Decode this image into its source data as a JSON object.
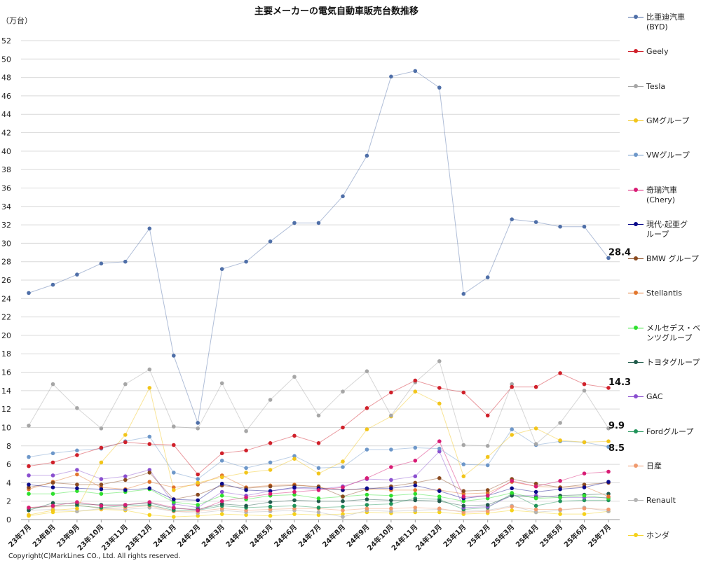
{
  "copyright": "Copyright(C)MarkLines CO., Ltd. All rights reserved.",
  "chart_data": {
    "type": "line",
    "title": "主要メーカーの電気自動車販売台数推移",
    "ylabel": "（万台）",
    "xlabel": "",
    "ylim": [
      0,
      52
    ],
    "yticks": [
      0,
      2,
      4,
      6,
      8,
      10,
      12,
      14,
      16,
      18,
      20,
      22,
      24,
      26,
      28,
      30,
      32,
      34,
      36,
      38,
      40,
      42,
      44,
      46,
      48,
      50,
      52
    ],
    "grid": true,
    "legend_position": "right",
    "categories": [
      "23年7月",
      "23年8月",
      "23年9月",
      "23年10月",
      "23年11月",
      "23年12月",
      "24年1月",
      "24年2月",
      "24年3月",
      "24年4月",
      "24年5月",
      "24年6月",
      "24年7月",
      "24年8月",
      "24年9月",
      "24年10月",
      "24年11月",
      "24年12月",
      "25年1月",
      "25年2月",
      "25年3月",
      "25年4月",
      "25年5月",
      "25年6月",
      "25年7月"
    ],
    "annotations": [
      {
        "series": "比亜迪汽車\n(BYD)",
        "text": "28.4"
      },
      {
        "series": "Geely",
        "text": "14.3"
      },
      {
        "series": "Tesla",
        "text": "9.9"
      },
      {
        "series": "GMグループ",
        "text": "8.5"
      }
    ],
    "series": [
      {
        "name": "比亜迪汽車\n(BYD)",
        "color": "#4f6fa8",
        "values": [
          24.6,
          25.5,
          26.6,
          27.8,
          28.0,
          31.6,
          17.8,
          10.5,
          27.2,
          28.0,
          30.2,
          32.2,
          32.2,
          35.1,
          39.5,
          48.1,
          48.7,
          46.9,
          24.5,
          26.3,
          32.6,
          32.3,
          31.8,
          31.8,
          28.4
        ]
      },
      {
        "name": "Geely",
        "color": "#d0202a",
        "values": [
          5.8,
          6.2,
          7.0,
          7.8,
          8.4,
          8.2,
          8.1,
          4.9,
          7.2,
          7.5,
          8.3,
          9.1,
          8.3,
          10.0,
          12.1,
          13.8,
          15.1,
          14.3,
          13.8,
          11.3,
          14.4,
          14.4,
          15.9,
          14.7,
          14.3
        ]
      },
      {
        "name": "Tesla",
        "color": "#a6a6a6",
        "values": [
          10.2,
          14.7,
          12.1,
          9.9,
          14.7,
          16.3,
          10.1,
          9.9,
          14.8,
          9.6,
          13.0,
          15.5,
          11.3,
          13.9,
          16.1,
          11.3,
          14.9,
          17.2,
          8.1,
          8.0,
          14.7,
          8.2,
          10.5,
          14.0,
          9.9
        ]
      },
      {
        "name": "GMグループ",
        "color": "#f2c51a",
        "values": [
          0.5,
          1.0,
          1.2,
          6.2,
          9.2,
          14.3,
          3.2,
          4.0,
          4.6,
          5.1,
          5.4,
          6.6,
          5.0,
          6.3,
          9.8,
          11.2,
          13.9,
          12.6,
          4.7,
          6.8,
          9.2,
          9.9,
          8.6,
          8.4,
          8.5
        ]
      },
      {
        "name": "VWグループ",
        "color": "#6d97c9",
        "values": [
          6.8,
          7.2,
          7.5,
          7.7,
          8.5,
          9.0,
          5.1,
          4.4,
          6.4,
          5.6,
          6.2,
          6.9,
          5.6,
          5.7,
          7.6,
          7.6,
          7.8,
          7.7,
          6.0,
          5.9,
          9.8,
          8.1,
          8.5,
          8.4,
          7.9
        ]
      },
      {
        "name": "奇瑞汽車\n(Chery)",
        "color": "#d81b74",
        "values": [
          1.3,
          1.5,
          1.9,
          1.5,
          1.6,
          1.9,
          1.3,
          1.0,
          2.0,
          2.4,
          2.8,
          3.0,
          3.2,
          3.5,
          4.5,
          5.7,
          6.4,
          8.5,
          2.5,
          2.6,
          4.2,
          3.6,
          4.2,
          5.0,
          5.2
        ]
      },
      {
        "name": "現代-起亜グ\nループ",
        "color": "#0a0a8a",
        "values": [
          3.8,
          3.5,
          3.4,
          3.3,
          3.2,
          3.4,
          2.2,
          2.1,
          3.9,
          3.2,
          3.1,
          3.5,
          3.4,
          3.2,
          3.4,
          3.4,
          3.7,
          3.1,
          2.3,
          2.6,
          3.4,
          3.0,
          3.3,
          3.5,
          4.1
        ]
      },
      {
        "name": "BMW グループ",
        "color": "#8a4a1f",
        "values": [
          3.5,
          4.0,
          3.8,
          3.8,
          4.3,
          5.1,
          2.2,
          2.7,
          3.7,
          3.4,
          3.6,
          3.7,
          3.6,
          2.5,
          3.3,
          3.6,
          4.0,
          4.5,
          3.1,
          3.2,
          4.4,
          3.9,
          3.5,
          3.8,
          4.0
        ]
      },
      {
        "name": "Stellantis",
        "color": "#e2772e",
        "values": [
          3.3,
          4.1,
          4.9,
          3.5,
          3.3,
          4.1,
          3.5,
          3.8,
          4.8,
          3.5,
          3.7,
          3.8,
          3.5,
          3.2,
          3.3,
          3.2,
          3.2,
          3.2,
          2.8,
          2.9,
          4.1,
          3.6,
          3.5,
          3.6,
          2.5
        ]
      },
      {
        "name": "メルセデス・ベ\nンツグループ",
        "color": "#2ee02e",
        "values": [
          2.8,
          2.8,
          3.1,
          2.8,
          3.0,
          3.3,
          1.9,
          1.6,
          2.6,
          2.2,
          2.6,
          2.7,
          2.3,
          2.5,
          2.7,
          2.6,
          2.8,
          2.5,
          2.0,
          2.3,
          2.9,
          2.3,
          2.4,
          2.6,
          2.3
        ]
      },
      {
        "name": "トヨタグループ",
        "color": "#1f5a4a",
        "values": [
          1.0,
          1.8,
          1.7,
          1.6,
          1.6,
          1.8,
          1.2,
          1.1,
          1.7,
          1.5,
          1.9,
          2.1,
          2.0,
          2.0,
          2.2,
          2.1,
          2.1,
          2.0,
          1.5,
          1.6,
          2.6,
          2.4,
          2.6,
          2.7,
          2.8
        ]
      },
      {
        "name": "GAC",
        "color": "#8a4fcf",
        "values": [
          4.8,
          4.8,
          5.4,
          4.4,
          4.7,
          5.4,
          1.7,
          1.3,
          3.0,
          2.6,
          3.1,
          3.4,
          3.3,
          3.6,
          4.4,
          4.3,
          4.7,
          7.4,
          1.3,
          1.4,
          2.6,
          2.6,
          2.4,
          2.4,
          2.4
        ]
      },
      {
        "name": "Fordグループ",
        "color": "#21945a",
        "values": [
          1.2,
          1.5,
          1.5,
          1.3,
          1.5,
          1.6,
          1.0,
          1.0,
          1.5,
          1.3,
          1.4,
          1.5,
          1.3,
          1.4,
          1.6,
          1.7,
          2.3,
          2.2,
          1.1,
          1.3,
          2.8,
          1.5,
          2.0,
          2.1,
          2.1
        ]
      },
      {
        "name": "日産",
        "color": "#f09a6e",
        "values": [
          1.3,
          1.4,
          1.6,
          1.2,
          1.3,
          1.5,
          0.9,
          0.9,
          1.2,
          1.0,
          1.1,
          1.2,
          1.2,
          1.0,
          1.2,
          1.2,
          1.3,
          1.2,
          0.8,
          0.9,
          1.4,
          1.1,
          1.1,
          1.2,
          1.1
        ]
      },
      {
        "name": "Renault",
        "color": "#b4b4b4",
        "values": [
          1.0,
          1.1,
          0.9,
          1.2,
          1.1,
          1.3,
          0.9,
          0.7,
          1.0,
          0.8,
          0.9,
          1.0,
          0.8,
          0.3,
          1.0,
          0.9,
          1.0,
          1.1,
          0.9,
          1.0,
          1.5,
          0.8,
          1.0,
          1.3,
          0.9
        ]
      },
      {
        "name": "ホンダ",
        "color": "#f5d11a",
        "values": [
          0.4,
          0.8,
          0.9,
          1.1,
          1.0,
          0.5,
          0.3,
          0.4,
          0.6,
          0.5,
          0.4,
          0.6,
          0.5,
          0.6,
          0.8,
          0.7,
          0.8,
          0.8,
          0.6,
          0.7,
          1.0,
          0.8,
          0.6,
          0.6,
          0.9
        ]
      }
    ]
  }
}
